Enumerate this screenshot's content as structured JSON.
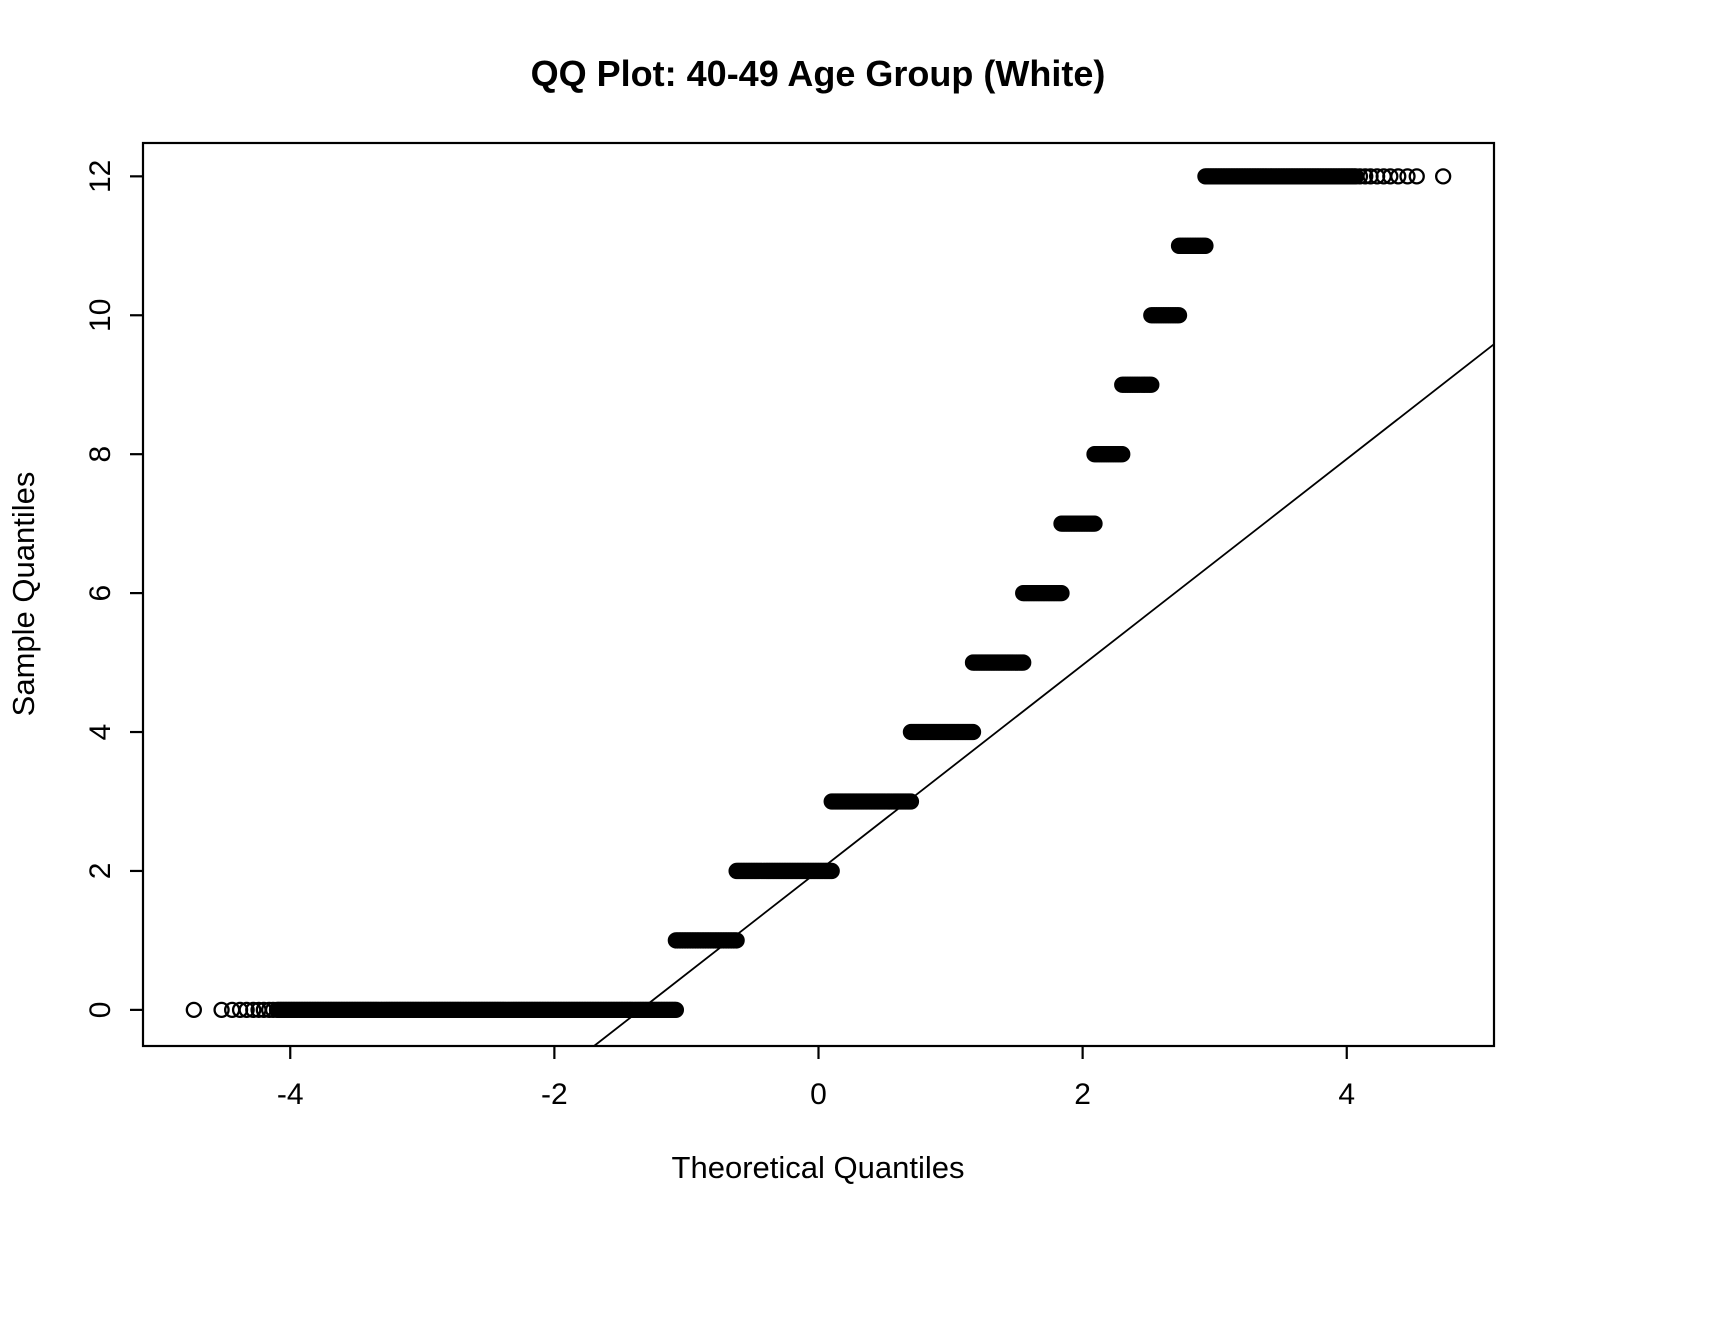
{
  "chart_data": {
    "type": "scatter",
    "title": "QQ Plot: 40-49 Age Group (White)",
    "xlabel": "Theoretical Quantiles",
    "ylabel": "Sample Quantiles",
    "xlim": [
      -5.115,
      5.115
    ],
    "ylim": [
      -0.52,
      12.48
    ],
    "x_ticks": [
      -4,
      -2,
      0,
      2,
      4
    ],
    "y_ticks": [
      0,
      2,
      4,
      6,
      8,
      10,
      12
    ],
    "marker": "open-circle",
    "point_color": "#000000",
    "line_color": "#000000",
    "grid": false,
    "legend": "none",
    "bands": [
      {
        "y": 0,
        "x_min": -4.1,
        "x_max": -1.08
      },
      {
        "y": 1,
        "x_min": -1.08,
        "x_max": -0.62
      },
      {
        "y": 2,
        "x_min": -0.62,
        "x_max": 0.1
      },
      {
        "y": 3,
        "x_min": 0.1,
        "x_max": 0.7
      },
      {
        "y": 4,
        "x_min": 0.7,
        "x_max": 1.17
      },
      {
        "y": 5,
        "x_min": 1.17,
        "x_max": 1.55
      },
      {
        "y": 6,
        "x_min": 1.55,
        "x_max": 1.84
      },
      {
        "y": 7,
        "x_min": 1.84,
        "x_max": 2.09
      },
      {
        "y": 8,
        "x_min": 2.09,
        "x_max": 2.3
      },
      {
        "y": 9,
        "x_min": 2.3,
        "x_max": 2.52
      },
      {
        "y": 10,
        "x_min": 2.52,
        "x_max": 2.73
      },
      {
        "y": 11,
        "x_min": 2.73,
        "x_max": 2.93
      },
      {
        "y": 12,
        "x_min": 2.93,
        "x_max": 4.07
      }
    ],
    "sparse_points": [
      {
        "x": -4.73,
        "y": 0
      },
      {
        "x": -4.52,
        "y": 0
      },
      {
        "x": -4.44,
        "y": 0
      },
      {
        "x": -4.38,
        "y": 0
      },
      {
        "x": -4.33,
        "y": 0
      },
      {
        "x": -4.28,
        "y": 0
      },
      {
        "x": -4.24,
        "y": 0
      },
      {
        "x": -4.2,
        "y": 0
      },
      {
        "x": -4.16,
        "y": 0
      },
      {
        "x": -4.13,
        "y": 0
      },
      {
        "x": 4.1,
        "y": 12
      },
      {
        "x": 4.14,
        "y": 12
      },
      {
        "x": 4.18,
        "y": 12
      },
      {
        "x": 4.23,
        "y": 12
      },
      {
        "x": 4.28,
        "y": 12
      },
      {
        "x": 4.33,
        "y": 12
      },
      {
        "x": 4.39,
        "y": 12
      },
      {
        "x": 4.46,
        "y": 12
      },
      {
        "x": 4.53,
        "y": 12
      },
      {
        "x": 4.73,
        "y": 12
      }
    ],
    "reference_line": {
      "slope": 1.4826,
      "intercept": 2.0
    }
  }
}
